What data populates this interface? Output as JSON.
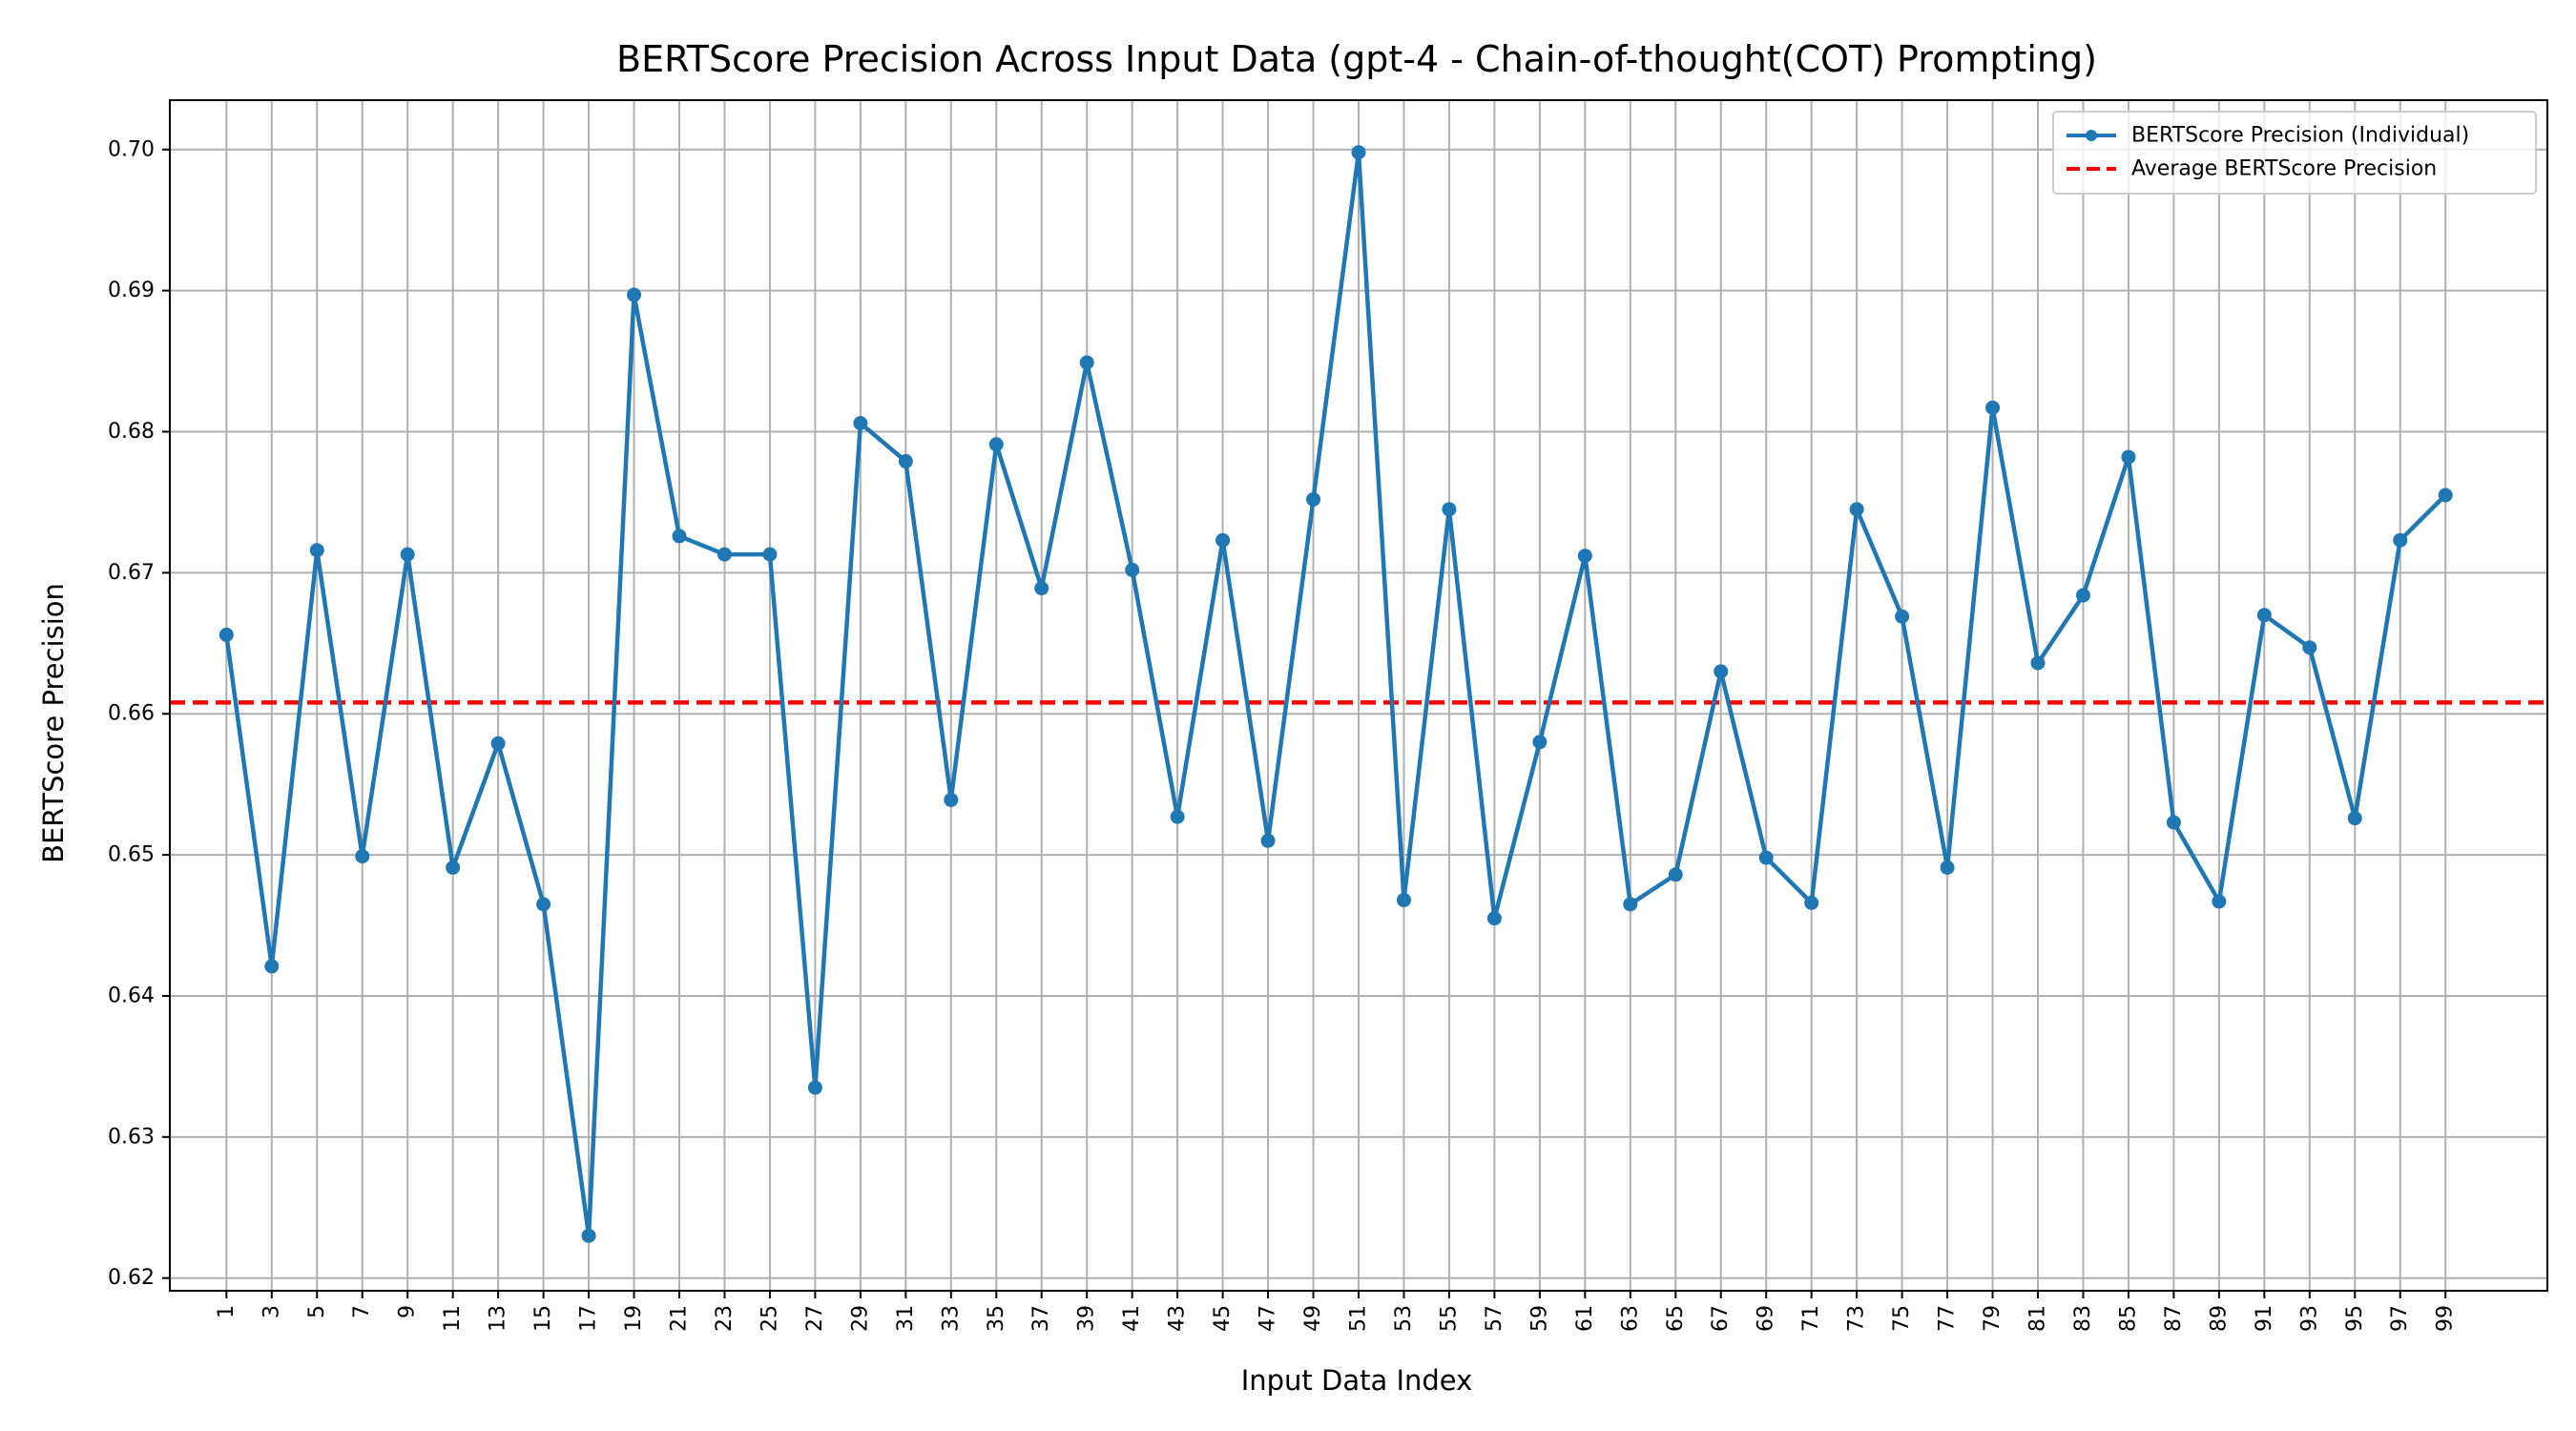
{
  "chart_data": {
    "type": "line",
    "title": "BERTScore Precision Across Input Data (gpt-4 - Chain-of-thought(COT) Prompting)",
    "xlabel": "Input Data Index",
    "ylabel": "BERTScore Precision",
    "xlim": [
      -1.5,
      103.5
    ],
    "ylim": [
      0.6191,
      0.7035
    ],
    "yticks": [
      0.62,
      0.63,
      0.64,
      0.65,
      0.66,
      0.67,
      0.68,
      0.69,
      0.7
    ],
    "ytick_labels": [
      "0.62",
      "0.63",
      "0.64",
      "0.65",
      "0.66",
      "0.67",
      "0.68",
      "0.69",
      "0.70"
    ],
    "xticks": [
      1,
      3,
      5,
      7,
      9,
      11,
      13,
      15,
      17,
      19,
      21,
      23,
      25,
      27,
      29,
      31,
      33,
      35,
      37,
      39,
      41,
      43,
      45,
      47,
      49,
      51,
      53,
      55,
      57,
      59,
      61,
      63,
      65,
      67,
      69,
      71,
      73,
      75,
      77,
      79,
      81,
      83,
      85,
      87,
      89,
      91,
      93,
      95,
      97,
      99
    ],
    "xtick_labels": [
      "1",
      "3",
      "5",
      "7",
      "9",
      "11",
      "13",
      "15",
      "17",
      "19",
      "21",
      "23",
      "25",
      "27",
      "29",
      "31",
      "33",
      "35",
      "37",
      "39",
      "41",
      "43",
      "45",
      "47",
      "49",
      "51",
      "53",
      "55",
      "57",
      "59",
      "61",
      "63",
      "65",
      "67",
      "69",
      "71",
      "73",
      "75",
      "77",
      "79",
      "81",
      "83",
      "85",
      "87",
      "89",
      "91",
      "93",
      "95",
      "97",
      "99"
    ],
    "grid": true,
    "legend_position": "top-right",
    "series": [
      {
        "name": "BERTScore Precision (Individual)",
        "color": "#1f77b4",
        "x": [
          1,
          3,
          5,
          7,
          9,
          11,
          13,
          15,
          17,
          19,
          21,
          23,
          25,
          27,
          29,
          31,
          33,
          35,
          37,
          39,
          41,
          43,
          45,
          47,
          49,
          51,
          53,
          55,
          57,
          59,
          61,
          63,
          65,
          67,
          69,
          71,
          73,
          75,
          77,
          79,
          81,
          83,
          85,
          87,
          89,
          91,
          93,
          95,
          97,
          99
        ],
        "values": [
          0.6656,
          0.6421,
          0.6716,
          0.6499,
          0.6713,
          0.6491,
          0.6579,
          0.6465,
          0.623,
          0.6897,
          0.6726,
          0.6713,
          0.6713,
          0.6335,
          0.6806,
          0.6779,
          0.6539,
          0.6791,
          0.6689,
          0.6849,
          0.6702,
          0.6527,
          0.6723,
          0.651,
          0.6752,
          0.6998,
          0.6468,
          0.6745,
          0.6455,
          0.658,
          0.6712,
          0.6465,
          0.6486,
          0.663,
          0.6498,
          0.6466,
          0.6745,
          0.6669,
          0.6491,
          0.6817,
          0.6636,
          0.6684,
          0.6782,
          0.6523,
          0.6467,
          0.667,
          0.6647,
          0.6526,
          0.6723,
          0.6755
        ]
      }
    ],
    "reference_lines": [
      {
        "name": "Average BERTScore Precision",
        "value": 0.6608,
        "color": "#ff0000",
        "style": "dashed"
      }
    ]
  }
}
